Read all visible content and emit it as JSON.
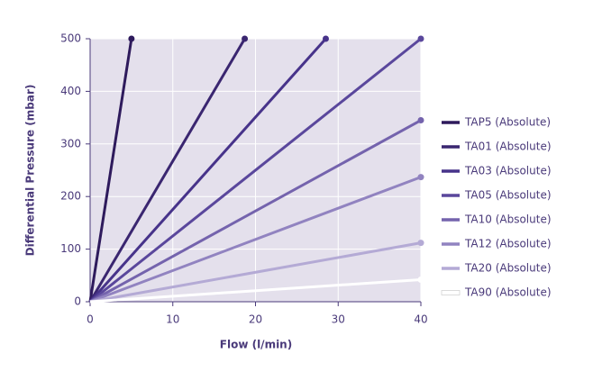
{
  "chart_data": {
    "type": "line",
    "x_label": "Flow (l/min)",
    "y_label": "Differential Pressure (mbar)",
    "xlim": [
      0,
      40
    ],
    "xticks": [
      0,
      10,
      20,
      30,
      40
    ],
    "ylim": [
      0,
      500
    ],
    "yticks": [
      0,
      100,
      200,
      300,
      400,
      500
    ],
    "grid": true,
    "legend": "right",
    "series": [
      {
        "name": "TAP5 (Absolute)",
        "color": "#2e1a5c",
        "x": [
          0,
          5
        ],
        "values": [
          0,
          500
        ]
      },
      {
        "name": "TA01 (Absolute)",
        "color": "#3a2670",
        "x": [
          0,
          18.7
        ],
        "values": [
          0,
          500
        ]
      },
      {
        "name": "TA03 (Absolute)",
        "color": "#47338a",
        "x": [
          0,
          28.5
        ],
        "values": [
          0,
          500
        ]
      },
      {
        "name": "TA05 (Absolute)",
        "color": "#5a479c",
        "x": [
          0,
          40
        ],
        "values": [
          0,
          500
        ]
      },
      {
        "name": "TA10 (Absolute)",
        "color": "#7463ad",
        "x": [
          0,
          40
        ],
        "values": [
          0,
          345
        ]
      },
      {
        "name": "TA12 (Absolute)",
        "color": "#9183c0",
        "x": [
          0,
          40
        ],
        "values": [
          0,
          237
        ]
      },
      {
        "name": "TA20 (Absolute)",
        "color": "#b4aad5",
        "x": [
          0,
          40
        ],
        "values": [
          0,
          112
        ]
      },
      {
        "name": "TA90 (Absolute)",
        "color": "#ffffff",
        "x": [
          0,
          40
        ],
        "values": [
          0,
          42
        ]
      }
    ]
  }
}
